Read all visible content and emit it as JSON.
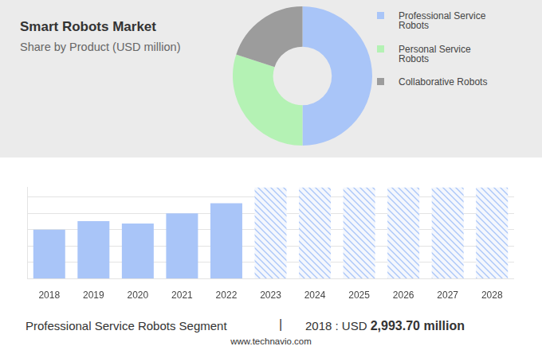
{
  "chart_data": [
    {
      "type": "doughnut",
      "title": "Smart Robots Market",
      "subtitle": "Share by Product (USD million)",
      "categories": [
        "Professional Service Robots",
        "Personal Service Robots",
        "Collaborative Robots"
      ],
      "values": [
        50,
        30,
        20
      ],
      "colors": [
        "#a9c5f8",
        "#b4f2b4",
        "#9c9c9c"
      ],
      "legend": "right"
    },
    {
      "type": "bar",
      "categories": [
        "2018",
        "2019",
        "2020",
        "2021",
        "2022",
        "2023",
        "2024",
        "2025",
        "2026",
        "2027",
        "2028"
      ],
      "series": [
        {
          "color": "#a9c5f8",
          "values": [
            2993.7,
            3516,
            3374,
            3992,
            4610,
            null,
            null,
            null,
            null,
            null,
            null
          ]
        },
        {
          "color": "#a9c5f8",
          "line_style": "hatched",
          "values": [
            null,
            null,
            null,
            null,
            null,
            5560,
            5560,
            5560,
            5560,
            5560,
            5560
          ]
        }
      ],
      "ylim": [
        0,
        5600
      ],
      "yticks": [
        0,
        1000,
        2000,
        3000,
        4000,
        5000
      ],
      "grid": true,
      "stacked": true,
      "tick_labels": "x",
      "annotation": {
        "text": "Professional Service Robots Segment",
        "divider": "|",
        "detail": "2018 : USD",
        "value": 2993.7,
        "value_label": "2,993.70 million"
      },
      "source": "www.technavio.com"
    }
  ]
}
